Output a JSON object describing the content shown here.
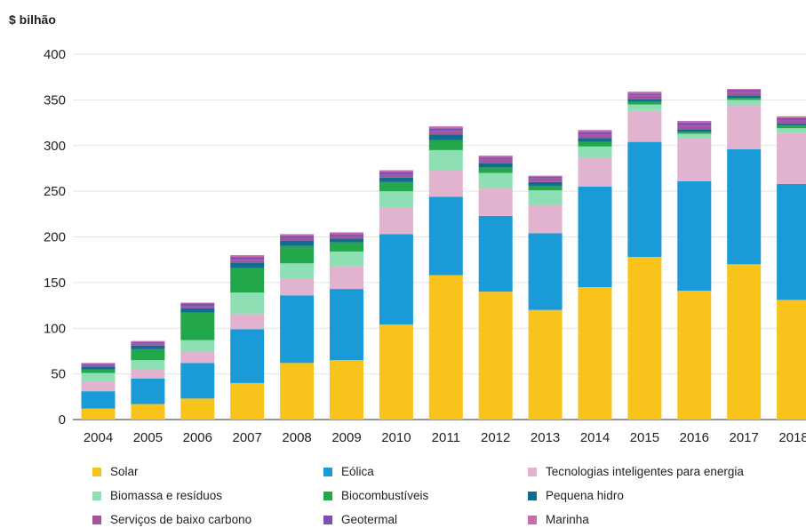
{
  "chart_data": {
    "type": "bar",
    "stacked": true,
    "title": "",
    "ylabel": "$ bilhão",
    "xlabel": "",
    "ylim": [
      0,
      400
    ],
    "yticks": [
      0,
      50,
      100,
      150,
      200,
      250,
      300,
      350,
      400
    ],
    "grid": true,
    "legend_position": "bottom",
    "categories": [
      "2004",
      "2005",
      "2006",
      "2007",
      "2008",
      "2009",
      "2010",
      "2011",
      "2012",
      "2013",
      "2014",
      "2015",
      "2016",
      "2017",
      "2018"
    ],
    "series": [
      {
        "name": "Solar",
        "color": "#F8C41C",
        "values": [
          12,
          17,
          23,
          40,
          62,
          65,
          104,
          158,
          140,
          120,
          145,
          178,
          141,
          170,
          131
        ]
      },
      {
        "name": "Eólica",
        "color": "#1A9AD6",
        "values": [
          19,
          28,
          39,
          59,
          74,
          78,
          99,
          86,
          83,
          84,
          110,
          126,
          120,
          126,
          127
        ]
      },
      {
        "name": "Tecnologias inteligentes para energia",
        "color": "#E2B3CF",
        "values": [
          11,
          10,
          12,
          17,
          18,
          25,
          29,
          29,
          30,
          31,
          32,
          34,
          47,
          48,
          56
        ]
      },
      {
        "name": "Biomassa e resíduos",
        "color": "#8EE0B4",
        "values": [
          9,
          10,
          13,
          23,
          17,
          16,
          18,
          22,
          17,
          16,
          12,
          7,
          5,
          6,
          5
        ]
      },
      {
        "name": "Biocombustíveis",
        "color": "#22A84A",
        "values": [
          4,
          12,
          30,
          27,
          19,
          10,
          10,
          11,
          6,
          5,
          5,
          3,
          2,
          2,
          3
        ]
      },
      {
        "name": "Pequena hidro",
        "color": "#0E6C8E",
        "values": [
          3,
          4,
          5,
          6,
          6,
          4,
          5,
          6,
          5,
          4,
          4,
          3,
          3,
          3,
          2
        ]
      },
      {
        "name": "Serviços de baixo carbono",
        "color": "#A3559A",
        "values": [
          1,
          2,
          2,
          3,
          3,
          3,
          3,
          4,
          4,
          4,
          4,
          4,
          4,
          4,
          4
        ]
      },
      {
        "name": "Geotermal",
        "color": "#7D50B5",
        "values": [
          2,
          2,
          3,
          3,
          2,
          2,
          3,
          3,
          2,
          2,
          3,
          2,
          3,
          2,
          2
        ]
      },
      {
        "name": "Marinha",
        "color": "#C86AAE",
        "values": [
          1,
          1,
          1,
          2,
          2,
          2,
          2,
          2,
          2,
          1,
          2,
          2,
          2,
          1,
          2
        ]
      }
    ]
  }
}
